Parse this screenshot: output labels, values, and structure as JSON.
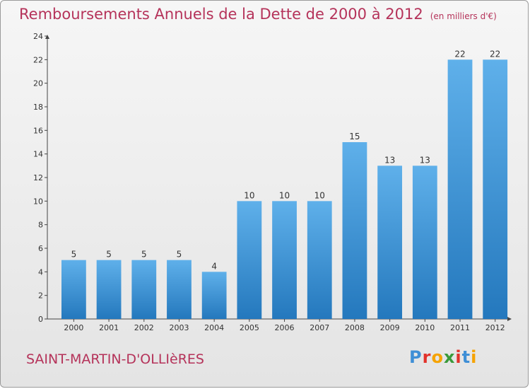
{
  "title": "Remboursements Annuels de la Dette de 2000 à 2012",
  "subtitle": "(en milliers d'€)",
  "commune": "SAINT-MARTIN-D'OLLIèRES",
  "brand": {
    "letters": [
      "P",
      "r",
      "o",
      "x",
      "i",
      "t",
      "i"
    ],
    "colors": [
      "#3f8fd6",
      "#e2322b",
      "#f6a300",
      "#3a9a3a",
      "#e2322b",
      "#3f8fd6",
      "#f6a300"
    ]
  },
  "chart_data": {
    "type": "bar",
    "categories": [
      "2000",
      "2001",
      "2002",
      "2003",
      "2004",
      "2005",
      "2006",
      "2007",
      "2008",
      "2009",
      "2010",
      "2011",
      "2012"
    ],
    "values": [
      5,
      5,
      5,
      5,
      4,
      10,
      10,
      10,
      15,
      13,
      13,
      22,
      22
    ],
    "title": "Remboursements Annuels de la Dette de 2000 à 2012",
    "xlabel": "",
    "ylabel": "",
    "ylim": [
      0,
      24
    ],
    "yticks": [
      0,
      2,
      4,
      6,
      8,
      10,
      12,
      14,
      16,
      18,
      20,
      22,
      24
    ],
    "bar_color": "#3a8fd6",
    "grid": false
  }
}
